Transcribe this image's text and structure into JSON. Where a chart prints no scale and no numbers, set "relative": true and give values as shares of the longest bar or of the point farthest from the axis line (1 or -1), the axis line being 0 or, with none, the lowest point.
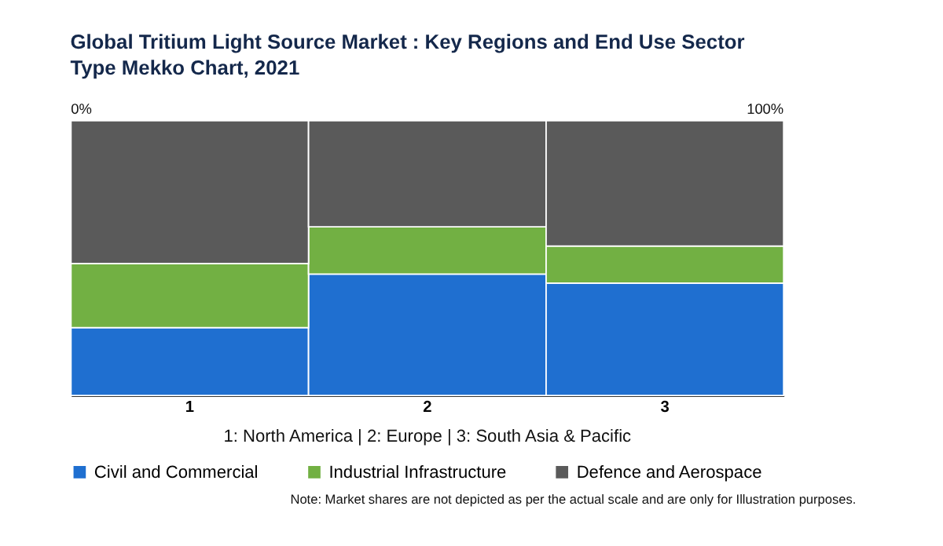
{
  "chart_data": {
    "type": "bar",
    "stacked": true,
    "relative": true,
    "title": "Global Tritium Light Source Market : Key Regions and End Use Sector Type Mekko Chart, 2021",
    "categories": [
      "1",
      "2",
      "3"
    ],
    "series": [
      {
        "name": "Civil and Commercial",
        "color": "#1f6fd0",
        "values": [
          0.247,
          0.442,
          0.409
        ]
      },
      {
        "name": "Industrial Infrastructure",
        "color": "#72b043",
        "values": [
          0.233,
          0.172,
          0.135
        ]
      },
      {
        "name": "Defence and Aerospace",
        "color": "#5a5a5a",
        "values": [
          0.52,
          0.386,
          0.456
        ]
      }
    ],
    "legend": "bottom",
    "annotations": [
      "0%",
      "100%",
      "1: North America  |  2: Europe  |  3: South Asia & Pacific",
      "Note: Market shares are not depicted as per the actual scale and are only for Illustration purposes."
    ]
  }
}
